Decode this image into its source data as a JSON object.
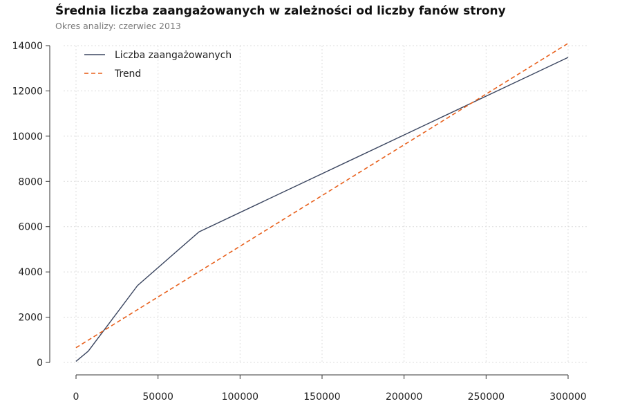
{
  "chart_data": {
    "type": "line",
    "title": "Średnia liczba zaangażowanych w zależności od liczby fanów strony",
    "subtitle": "Okres analizy: czerwiec 2013",
    "xlabel": "",
    "ylabel": "",
    "xlim": [
      0,
      300000
    ],
    "ylim": [
      0,
      14000
    ],
    "x_ticks": [
      0,
      50000,
      100000,
      150000,
      200000,
      250000,
      300000
    ],
    "y_ticks": [
      0,
      2000,
      4000,
      6000,
      8000,
      10000,
      12000,
      14000
    ],
    "grid": true,
    "legend_position": "top-left",
    "series": [
      {
        "name": "Liczba zaangażowanych",
        "style": "solid",
        "color": "#3b4660",
        "x": [
          0,
          7500,
          37500,
          75000,
          300000
        ],
        "y": [
          50,
          500,
          3400,
          5770,
          13480
        ]
      },
      {
        "name": "Trend",
        "style": "dashed",
        "color": "#e8601c",
        "x": [
          0,
          300000
        ],
        "y": [
          650,
          14100
        ]
      }
    ]
  }
}
